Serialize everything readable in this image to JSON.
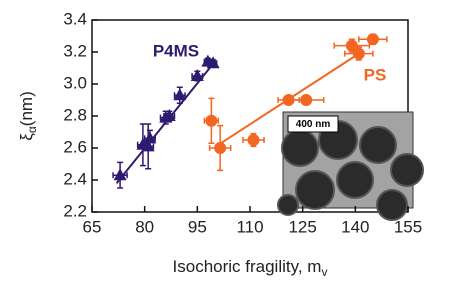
{
  "chart_data": {
    "type": "scatter",
    "xlabel": {
      "text": "Isochoric fragility, m",
      "subscript": "v"
    },
    "ylabel": {
      "symbol": "ξ",
      "subscript": "α",
      "unit": "(nm)"
    },
    "xlim": [
      65,
      155
    ],
    "xticks": [
      65,
      80,
      95,
      110,
      125,
      140,
      155
    ],
    "ylim": [
      2.2,
      3.4
    ],
    "yticks": [
      2.2,
      2.4,
      2.6,
      2.8,
      {
        "value": 3,
        "label": "3.0"
      },
      3.2,
      3.4
    ],
    "series": [
      {
        "name": "P4MS",
        "color": "#2e1a6e",
        "marker": "triangle",
        "x": [
          73,
          79.5,
          81,
          81.5,
          86,
          87,
          90,
          95,
          98,
          99.5
        ],
        "values": [
          2.43,
          2.62,
          2.61,
          2.66,
          2.79,
          2.8,
          2.93,
          3.05,
          3.14,
          3.13
        ],
        "xerr": [
          2,
          1.5,
          1.5,
          1.5,
          1.5,
          1.5,
          1.5,
          1.5,
          1,
          1
        ],
        "yerr": [
          0.08,
          0.13,
          0.14,
          0.05,
          0.04,
          0.03,
          0.05,
          0.03,
          0.02,
          0.02
        ],
        "fit": {
          "x": [
            72,
            100
          ],
          "y": [
            2.38,
            3.14
          ]
        }
      },
      {
        "name": "PS",
        "color": "#f26522",
        "marker": "circle",
        "x": [
          99,
          101.5,
          111,
          121,
          126,
          139,
          141,
          145
        ],
        "values": [
          2.77,
          2.6,
          2.65,
          2.9,
          2.9,
          3.24,
          3.19,
          3.28
        ],
        "xerr": [
          2,
          3,
          3,
          3,
          5,
          5,
          4,
          4
        ],
        "yerr": [
          0.14,
          0.14,
          0.04,
          0.02,
          0.03,
          0.04,
          0.04,
          0.03
        ],
        "fit": {
          "x": [
            101,
            141
          ],
          "y": [
            2.62,
            3.19
          ]
        }
      }
    ],
    "inset_label": "400 nm"
  }
}
